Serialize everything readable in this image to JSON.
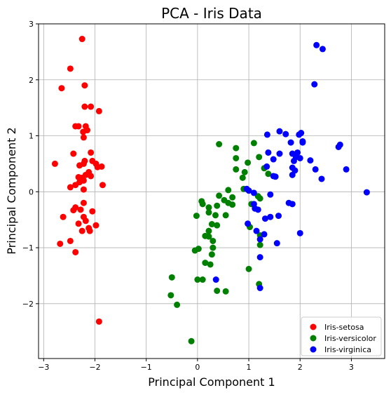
{
  "chart_data": {
    "type": "scatter",
    "title": "PCA - Iris Data",
    "xlabel": "Principal Component 1",
    "ylabel": "Principal Component 2",
    "xlim": [
      -3.1,
      3.65
    ],
    "ylim": [
      -2.98,
      3.0
    ],
    "xticks": [
      -3,
      -2,
      -1,
      0,
      1,
      2,
      3
    ],
    "yticks": [
      -2,
      -1,
      0,
      1,
      2,
      3
    ],
    "grid": true,
    "legend_position": "lower-right",
    "series": [
      {
        "name": "Iris-setosa",
        "color": "#ff0000",
        "points": [
          [
            -2.25,
            2.73
          ],
          [
            -2.48,
            2.2
          ],
          [
            -2.65,
            1.85
          ],
          [
            -2.2,
            1.9
          ],
          [
            -2.2,
            1.52
          ],
          [
            -2.08,
            1.52
          ],
          [
            -1.92,
            1.44
          ],
          [
            -2.38,
            1.17
          ],
          [
            -2.32,
            1.17
          ],
          [
            -2.18,
            1.17
          ],
          [
            -2.23,
            1.07
          ],
          [
            -2.15,
            1.1
          ],
          [
            -2.22,
            0.97
          ],
          [
            -2.42,
            0.68
          ],
          [
            -2.08,
            0.7
          ],
          [
            -2.2,
            0.55
          ],
          [
            -2.3,
            0.47
          ],
          [
            -2.22,
            0.5
          ],
          [
            -2.05,
            0.55
          ],
          [
            -1.98,
            0.5
          ],
          [
            -1.95,
            0.44
          ],
          [
            -1.87,
            0.45
          ],
          [
            -2.78,
            0.5
          ],
          [
            -2.32,
            0.26
          ],
          [
            -2.25,
            0.25
          ],
          [
            -2.18,
            0.3
          ],
          [
            -2.12,
            0.35
          ],
          [
            -2.08,
            0.28
          ],
          [
            -2.3,
            0.17
          ],
          [
            -2.22,
            0.2
          ],
          [
            -2.48,
            0.08
          ],
          [
            -2.38,
            0.12
          ],
          [
            -2.22,
            0.04
          ],
          [
            -1.85,
            0.12
          ],
          [
            -2.42,
            -0.33
          ],
          [
            -2.38,
            -0.28
          ],
          [
            -2.28,
            -0.32
          ],
          [
            -2.22,
            -0.2
          ],
          [
            -2.05,
            -0.35
          ],
          [
            -2.62,
            -0.45
          ],
          [
            -2.22,
            -0.45
          ],
          [
            -2.18,
            -0.52
          ],
          [
            -2.32,
            -0.57
          ],
          [
            -2.25,
            -0.7
          ],
          [
            -2.12,
            -0.65
          ],
          [
            -2.1,
            -0.7
          ],
          [
            -1.98,
            -0.6
          ],
          [
            -2.48,
            -0.88
          ],
          [
            -2.68,
            -0.93
          ],
          [
            -2.38,
            -1.08
          ],
          [
            -1.92,
            -2.32
          ]
        ]
      },
      {
        "name": "Iris-versicolor",
        "color": "#008000",
        "points": [
          [
            0.42,
            0.85
          ],
          [
            1.1,
            0.87
          ],
          [
            0.75,
            0.78
          ],
          [
            0.75,
            0.6
          ],
          [
            0.98,
            0.52
          ],
          [
            1.2,
            0.62
          ],
          [
            0.75,
            0.4
          ],
          [
            0.92,
            0.35
          ],
          [
            1.3,
            0.42
          ],
          [
            1.38,
            0.32
          ],
          [
            0.88,
            0.25
          ],
          [
            0.6,
            0.03
          ],
          [
            0.9,
            0.05
          ],
          [
            0.42,
            -0.07
          ],
          [
            0.68,
            -0.1
          ],
          [
            0.52,
            -0.15
          ],
          [
            0.6,
            -0.2
          ],
          [
            0.68,
            -0.23
          ],
          [
            1.05,
            -0.22
          ],
          [
            1.18,
            -0.08
          ],
          [
            1.22,
            -0.12
          ],
          [
            0.08,
            -0.17
          ],
          [
            0.1,
            -0.22
          ],
          [
            0.38,
            -0.25
          ],
          [
            0.22,
            -0.28
          ],
          [
            0.22,
            -0.37
          ],
          [
            0.35,
            -0.42
          ],
          [
            0.55,
            -0.42
          ],
          [
            -0.02,
            -0.43
          ],
          [
            0.28,
            -0.58
          ],
          [
            0.38,
            -0.6
          ],
          [
            1.02,
            -0.63
          ],
          [
            0.22,
            -0.7
          ],
          [
            0.15,
            -0.79
          ],
          [
            0.22,
            -0.8
          ],
          [
            1.22,
            -0.78
          ],
          [
            0.3,
            -0.88
          ],
          [
            1.22,
            -0.95
          ],
          [
            0.02,
            -1.02
          ],
          [
            -0.05,
            -1.05
          ],
          [
            0.3,
            -1.0
          ],
          [
            0.28,
            -1.12
          ],
          [
            0.15,
            -1.27
          ],
          [
            0.25,
            -1.3
          ],
          [
            1.0,
            -1.38
          ],
          [
            -0.5,
            -1.53
          ],
          [
            0.0,
            -1.57
          ],
          [
            0.1,
            -1.57
          ],
          [
            1.2,
            -1.65
          ],
          [
            0.38,
            -1.77
          ],
          [
            0.55,
            -1.78
          ],
          [
            -0.52,
            -1.85
          ],
          [
            -0.4,
            -2.02
          ],
          [
            -0.12,
            -2.67
          ]
        ]
      },
      {
        "name": "Iris-virginica",
        "color": "#0000ff",
        "points": [
          [
            2.32,
            2.62
          ],
          [
            2.44,
            2.55
          ],
          [
            2.28,
            1.92
          ],
          [
            1.6,
            1.08
          ],
          [
            1.72,
            1.03
          ],
          [
            1.36,
            1.02
          ],
          [
            1.98,
            1.02
          ],
          [
            2.02,
            1.05
          ],
          [
            2.05,
            0.9
          ],
          [
            2.05,
            0.88
          ],
          [
            1.82,
            0.88
          ],
          [
            2.78,
            0.84
          ],
          [
            2.75,
            0.8
          ],
          [
            1.38,
            0.7
          ],
          [
            1.6,
            0.68
          ],
          [
            1.85,
            0.68
          ],
          [
            1.95,
            0.7
          ],
          [
            1.92,
            0.62
          ],
          [
            2.0,
            0.6
          ],
          [
            1.88,
            0.55
          ],
          [
            2.2,
            0.56
          ],
          [
            1.48,
            0.58
          ],
          [
            1.35,
            0.45
          ],
          [
            1.85,
            0.43
          ],
          [
            1.9,
            0.38
          ],
          [
            2.3,
            0.4
          ],
          [
            2.9,
            0.4
          ],
          [
            1.48,
            0.28
          ],
          [
            1.52,
            0.27
          ],
          [
            1.85,
            0.3
          ],
          [
            2.42,
            0.23
          ],
          [
            1.0,
            0.02
          ],
          [
            0.96,
            0.05
          ],
          [
            1.1,
            -0.02
          ],
          [
            1.42,
            -0.05
          ],
          [
            3.3,
            -0.01
          ],
          [
            1.1,
            -0.22
          ],
          [
            1.78,
            -0.2
          ],
          [
            1.85,
            -0.22
          ],
          [
            1.12,
            -0.3
          ],
          [
            1.18,
            -0.32
          ],
          [
            1.32,
            -0.48
          ],
          [
            1.42,
            -0.45
          ],
          [
            1.58,
            -0.43
          ],
          [
            0.98,
            -0.57
          ],
          [
            1.15,
            -0.7
          ],
          [
            1.3,
            -0.76
          ],
          [
            1.22,
            -0.85
          ],
          [
            2.0,
            -0.74
          ],
          [
            1.55,
            -0.92
          ],
          [
            1.22,
            -1.17
          ],
          [
            0.36,
            -1.57
          ],
          [
            1.22,
            -1.72
          ]
        ]
      }
    ]
  }
}
